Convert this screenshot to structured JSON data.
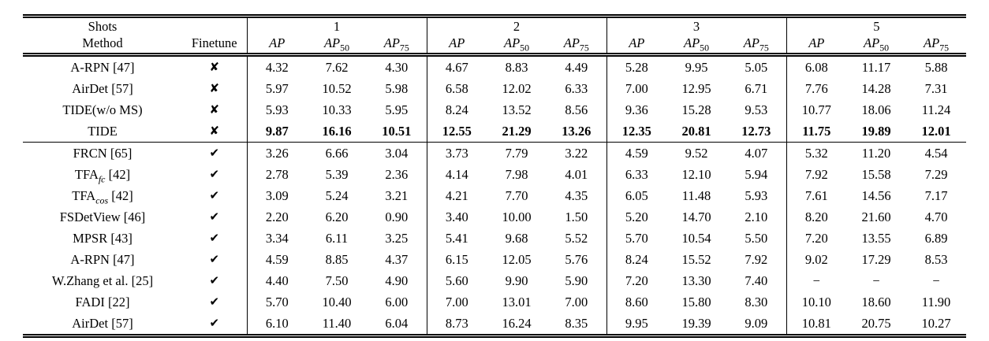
{
  "table": {
    "header": {
      "shots_label": "Shots",
      "method_label": "Method",
      "finetune_label": "Finetune",
      "groups": [
        {
          "shots": "1"
        },
        {
          "shots": "2"
        },
        {
          "shots": "3"
        },
        {
          "shots": "5"
        }
      ],
      "metrics": [
        {
          "base": "AP",
          "sub": ""
        },
        {
          "base": "AP",
          "sub": "50"
        },
        {
          "base": "AP",
          "sub": "75"
        }
      ]
    },
    "sections": [
      {
        "finetune_symbol": "✘",
        "rows": [
          {
            "name": "A-RPN",
            "sub": "",
            "ref": "[47]",
            "bold": false,
            "values": [
              "4.32",
              "7.62",
              "4.30",
              "4.67",
              "8.83",
              "4.49",
              "5.28",
              "9.95",
              "5.05",
              "6.08",
              "11.17",
              "5.88"
            ]
          },
          {
            "name": "AirDet",
            "sub": "",
            "ref": "[57]",
            "bold": false,
            "values": [
              "5.97",
              "10.52",
              "5.98",
              "6.58",
              "12.02",
              "6.33",
              "7.00",
              "12.95",
              "6.71",
              "7.76",
              "14.28",
              "7.31"
            ]
          },
          {
            "name": "TIDE(w/o MS)",
            "sub": "",
            "ref": "",
            "bold": false,
            "values": [
              "5.93",
              "10.33",
              "5.95",
              "8.24",
              "13.52",
              "8.56",
              "9.36",
              "15.28",
              "9.53",
              "10.77",
              "18.06",
              "11.24"
            ]
          },
          {
            "name": "TIDE",
            "sub": "",
            "ref": "",
            "bold": true,
            "values": [
              "9.87",
              "16.16",
              "10.51",
              "12.55",
              "21.29",
              "13.26",
              "12.35",
              "20.81",
              "12.73",
              "11.75",
              "19.89",
              "12.01"
            ]
          }
        ]
      },
      {
        "finetune_symbol": "✔",
        "rows": [
          {
            "name": "FRCN",
            "sub": "",
            "ref": "[65]",
            "bold": false,
            "values": [
              "3.26",
              "6.66",
              "3.04",
              "3.73",
              "7.79",
              "3.22",
              "4.59",
              "9.52",
              "4.07",
              "5.32",
              "11.20",
              "4.54"
            ]
          },
          {
            "name": "TFA",
            "sub": "fc",
            "ref": "[42]",
            "bold": false,
            "values": [
              "2.78",
              "5.39",
              "2.36",
              "4.14",
              "7.98",
              "4.01",
              "6.33",
              "12.10",
              "5.94",
              "7.92",
              "15.58",
              "7.29"
            ]
          },
          {
            "name": "TFA",
            "sub": "cos",
            "ref": "[42]",
            "bold": false,
            "values": [
              "3.09",
              "5.24",
              "3.21",
              "4.21",
              "7.70",
              "4.35",
              "6.05",
              "11.48",
              "5.93",
              "7.61",
              "14.56",
              "7.17"
            ]
          },
          {
            "name": "FSDetView",
            "sub": "",
            "ref": "[46]",
            "bold": false,
            "values": [
              "2.20",
              "6.20",
              "0.90",
              "3.40",
              "10.00",
              "1.50",
              "5.20",
              "14.70",
              "2.10",
              "8.20",
              "21.60",
              "4.70"
            ]
          },
          {
            "name": "MPSR",
            "sub": "",
            "ref": "[43]",
            "bold": false,
            "values": [
              "3.34",
              "6.11",
              "3.25",
              "5.41",
              "9.68",
              "5.52",
              "5.70",
              "10.54",
              "5.50",
              "7.20",
              "13.55",
              "6.89"
            ]
          },
          {
            "name": "A-RPN",
            "sub": "",
            "ref": "[47]",
            "bold": false,
            "values": [
              "4.59",
              "8.85",
              "4.37",
              "6.15",
              "12.05",
              "5.76",
              "8.24",
              "15.52",
              "7.92",
              "9.02",
              "17.29",
              "8.53"
            ]
          },
          {
            "name": "W.Zhang et al.",
            "sub": "",
            "ref": "[25]",
            "bold": false,
            "values": [
              "4.40",
              "7.50",
              "4.90",
              "5.60",
              "9.90",
              "5.90",
              "7.20",
              "13.30",
              "7.40",
              "−",
              "−",
              "−"
            ]
          },
          {
            "name": "FADI",
            "sub": "",
            "ref": "[22]",
            "bold": false,
            "values": [
              "5.70",
              "10.40",
              "6.00",
              "7.00",
              "13.01",
              "7.00",
              "8.60",
              "15.80",
              "8.30",
              "10.10",
              "18.60",
              "11.90"
            ]
          },
          {
            "name": "AirDet",
            "sub": "",
            "ref": "[57]",
            "bold": false,
            "values": [
              "6.10",
              "11.40",
              "6.04",
              "8.73",
              "16.24",
              "8.35",
              "9.95",
              "19.39",
              "9.09",
              "10.81",
              "20.75",
              "10.27"
            ]
          }
        ]
      }
    ]
  }
}
